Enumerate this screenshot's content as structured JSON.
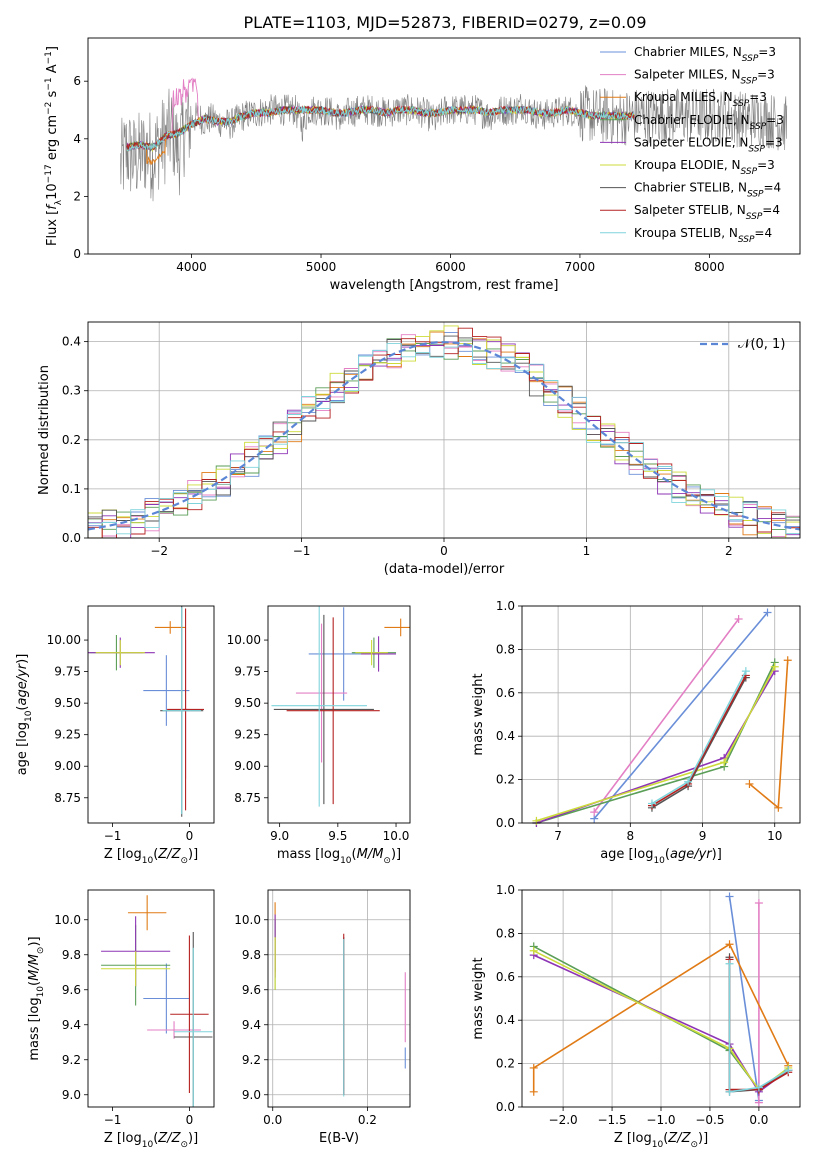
{
  "figure": {
    "title": "PLATE=1103, MJD=52873, FIBERID=0279, z=0.09"
  },
  "legend_entries": [
    {
      "base": "Chabrier MILES, N",
      "sub": "SSP",
      "tail": "=3",
      "color": "#6a8fd8"
    },
    {
      "base": "Salpeter MILES, N",
      "sub": "SSP",
      "tail": "=3",
      "color": "#e37fc4"
    },
    {
      "base": "Kroupa MILES, N",
      "sub": "SSP",
      "tail": "=3",
      "color": "#e07b16"
    },
    {
      "base": "Chabrier ELODIE, N",
      "sub": "SSP",
      "tail": "=3",
      "color": "#5a9e57"
    },
    {
      "base": "Salpeter ELODIE, N",
      "sub": "SSP",
      "tail": "=3",
      "color": "#8e35b5"
    },
    {
      "base": "Kroupa ELODIE, N",
      "sub": "SSP",
      "tail": "=3",
      "color": "#cddb3a"
    },
    {
      "base": "Chabrier STELIB, N",
      "sub": "SSP",
      "tail": "=4",
      "color": "#555555"
    },
    {
      "base": "Salpeter STELIB, N",
      "sub": "SSP",
      "tail": "=4",
      "color": "#b52222"
    },
    {
      "base": "Kroupa STELIB, N",
      "sub": "SSP",
      "tail": "=4",
      "color": "#7fd4dc"
    }
  ],
  "chart_data": [
    {
      "id": "spectrum",
      "type": "line",
      "xlabel": "wavelength [Angstrom, rest frame]",
      "ylabel": "Flux [f_λ 10^-17 erg cm^-2 s^-1 A^-1]",
      "xlim": [
        3200,
        8700
      ],
      "ylim": [
        0,
        7.5
      ],
      "xticks": [
        4000,
        5000,
        6000,
        7000,
        8000
      ],
      "yticks": [
        0,
        2,
        4,
        6
      ],
      "grid": false,
      "legend_position": "right",
      "data_color": "#808080",
      "data_points": [
        [
          3450,
          3.0
        ],
        [
          3500,
          3.6
        ],
        [
          3550,
          3.3
        ],
        [
          3600,
          3.4
        ],
        [
          3650,
          3.6
        ],
        [
          3700,
          3.4
        ],
        [
          3750,
          3.8
        ],
        [
          3800,
          4.0
        ],
        [
          3850,
          4.3
        ],
        [
          3900,
          3.5
        ],
        [
          3950,
          4.4
        ],
        [
          4000,
          4.6
        ],
        [
          4050,
          4.8
        ],
        [
          4100,
          4.6
        ],
        [
          4150,
          4.7
        ],
        [
          4200,
          4.6
        ],
        [
          4300,
          4.5
        ],
        [
          4400,
          4.8
        ],
        [
          4500,
          4.9
        ],
        [
          4600,
          5.0
        ],
        [
          4700,
          5.0
        ],
        [
          4800,
          5.0
        ],
        [
          4861,
          4.4
        ],
        [
          4900,
          5.0
        ],
        [
          5000,
          5.0
        ],
        [
          5100,
          4.9
        ],
        [
          5175,
          4.6
        ],
        [
          5200,
          4.9
        ],
        [
          5300,
          5.0
        ],
        [
          5400,
          5.0
        ],
        [
          5500,
          4.9
        ],
        [
          5600,
          5.0
        ],
        [
          5700,
          5.0
        ],
        [
          5800,
          4.9
        ],
        [
          5890,
          4.6
        ],
        [
          5950,
          5.0
        ],
        [
          6000,
          5.0
        ],
        [
          6100,
          5.0
        ],
        [
          6200,
          5.0
        ],
        [
          6300,
          4.8
        ],
        [
          6400,
          5.0
        ],
        [
          6500,
          5.0
        ],
        [
          6563,
          5.2
        ],
        [
          6600,
          5.0
        ],
        [
          6700,
          4.8
        ],
        [
          6800,
          4.9
        ],
        [
          6900,
          5.0
        ],
        [
          7000,
          4.9
        ],
        [
          7100,
          4.8
        ],
        [
          7200,
          4.8
        ],
        [
          7300,
          4.7
        ],
        [
          7400,
          4.8
        ],
        [
          7500,
          4.8
        ],
        [
          7600,
          4.8
        ],
        [
          7700,
          4.8
        ],
        [
          7800,
          4.8
        ],
        [
          7900,
          4.8
        ],
        [
          8000,
          4.8
        ],
        [
          8100,
          4.8
        ],
        [
          8200,
          4.7
        ],
        [
          8300,
          4.7
        ],
        [
          8400,
          4.7
        ],
        [
          8500,
          4.6
        ],
        [
          8600,
          4.5
        ]
      ],
      "model_points": [
        [
          3500,
          3.7
        ],
        [
          3600,
          3.8
        ],
        [
          3700,
          3.7
        ],
        [
          3800,
          4.1
        ],
        [
          3900,
          4.2
        ],
        [
          4000,
          4.5
        ],
        [
          4100,
          4.7
        ],
        [
          4200,
          4.6
        ],
        [
          4300,
          4.6
        ],
        [
          4400,
          4.8
        ],
        [
          4500,
          4.9
        ],
        [
          4600,
          4.9
        ],
        [
          4700,
          5.0
        ],
        [
          4800,
          5.0
        ],
        [
          4900,
          5.0
        ],
        [
          5000,
          5.0
        ],
        [
          5100,
          4.9
        ],
        [
          5200,
          4.9
        ],
        [
          5300,
          5.0
        ],
        [
          5400,
          5.0
        ],
        [
          5500,
          4.9
        ],
        [
          5600,
          5.0
        ],
        [
          5700,
          5.0
        ],
        [
          5800,
          4.9
        ],
        [
          5900,
          4.9
        ],
        [
          6000,
          5.0
        ],
        [
          6100,
          5.0
        ],
        [
          6200,
          5.0
        ],
        [
          6300,
          4.9
        ],
        [
          6400,
          5.0
        ],
        [
          6500,
          5.0
        ],
        [
          6600,
          5.0
        ],
        [
          6700,
          4.9
        ],
        [
          6800,
          4.9
        ],
        [
          6900,
          5.0
        ],
        [
          7000,
          4.9
        ],
        [
          7100,
          4.8
        ],
        [
          7200,
          4.8
        ],
        [
          7300,
          4.8
        ],
        [
          7400,
          4.8
        ],
        [
          7500,
          4.8
        ],
        [
          7600,
          4.8
        ],
        [
          7700,
          4.8
        ],
        [
          7800,
          4.8
        ],
        [
          7900,
          4.8
        ],
        [
          8000,
          4.8
        ],
        [
          8100,
          4.8
        ],
        [
          8200,
          4.7
        ],
        [
          8300,
          4.7
        ],
        [
          8400,
          4.7
        ],
        [
          8500,
          4.6
        ],
        [
          8600,
          4.5
        ]
      ]
    },
    {
      "id": "residuals",
      "type": "line",
      "xlabel": "(data-model)/error",
      "ylabel": "Normed distribution",
      "xlim": [
        -2.5,
        2.5
      ],
      "ylim": [
        0,
        0.44
      ],
      "xticks": [
        -2,
        -1,
        0,
        1,
        2
      ],
      "yticks": [
        0.0,
        0.1,
        0.2,
        0.3,
        0.4
      ],
      "grid": true,
      "legend_position": "top-right",
      "gaussian_label": "𝒩(0, 1)",
      "bin_width": 0.1,
      "bin_start": -2.5
    },
    {
      "id": "age_vs_Z",
      "type": "scatter",
      "xlabel": "Z [log10(Z/Z⊙)]",
      "ylabel": "age [log10(age/yr)]",
      "xlim": [
        -1.32,
        0.32
      ],
      "ylim": [
        8.55,
        10.27
      ],
      "xticks": [
        -1,
        0
      ],
      "yticks": [
        8.75,
        9.0,
        9.25,
        9.5,
        9.75,
        10.0
      ],
      "grid": false,
      "points": [
        {
          "x": -0.3,
          "xerr": 0.3,
          "y": 9.6,
          "yerr": 0.28,
          "color": "#6a8fd8"
        },
        {
          "x": -0.05,
          "xerr": 0.05,
          "y": 9.45,
          "yerr": 0.55,
          "color": "#e37fc4"
        },
        {
          "x": -0.25,
          "xerr": 0.2,
          "y": 10.1,
          "yerr": 0.05,
          "color": "#e07b16"
        },
        {
          "x": -0.95,
          "xerr": 0.35,
          "y": 9.9,
          "yerr": 0.14,
          "color": "#5a9e57"
        },
        {
          "x": -0.9,
          "xerr": 0.45,
          "y": 9.9,
          "yerr": 0.12,
          "color": "#8e35b5"
        },
        {
          "x": -0.9,
          "xerr": 0.32,
          "y": 9.9,
          "yerr": 0.1,
          "color": "#cddb3a"
        },
        {
          "x": -0.1,
          "xerr": 0.28,
          "y": 9.44,
          "yerr": 0.84,
          "color": "#555555"
        },
        {
          "x": -0.05,
          "xerr": 0.24,
          "y": 9.45,
          "yerr": 0.8,
          "color": "#b52222"
        },
        {
          "x": -0.1,
          "xerr": 0.25,
          "y": 9.44,
          "yerr": 0.82,
          "color": "#7fd4dc"
        }
      ]
    },
    {
      "id": "age_vs_mass",
      "type": "scatter",
      "xlabel": "mass [log10(M/M⊙)]",
      "ylabel": "",
      "xlim": [
        8.9,
        10.12
      ],
      "ylim": [
        8.55,
        10.27
      ],
      "xticks": [
        9.0,
        9.5,
        10.0
      ],
      "yticks": [
        8.75,
        9.0,
        9.25,
        9.5,
        9.75,
        10.0
      ],
      "grid": false,
      "points": [
        {
          "x": 9.55,
          "xerr": 0.3,
          "y": 9.89,
          "yerr": 0.37,
          "color": "#6a8fd8"
        },
        {
          "x": 9.36,
          "xerr": 0.22,
          "y": 9.58,
          "yerr": 0.55,
          "color": "#e37fc4"
        },
        {
          "x": 10.04,
          "xerr": 0.14,
          "y": 10.1,
          "yerr": 0.07,
          "color": "#e07b16"
        },
        {
          "x": 9.81,
          "xerr": 0.19,
          "y": 9.9,
          "yerr": 0.12,
          "color": "#5a9e57"
        },
        {
          "x": 9.85,
          "xerr": 0.15,
          "y": 9.89,
          "yerr": 0.14,
          "color": "#8e35b5"
        },
        {
          "x": 9.79,
          "xerr": 0.14,
          "y": 9.9,
          "yerr": 0.1,
          "color": "#cddb3a"
        },
        {
          "x": 9.38,
          "xerr": 0.43,
          "y": 9.45,
          "yerr": 0.75,
          "color": "#555555"
        },
        {
          "x": 9.46,
          "xerr": 0.4,
          "y": 9.44,
          "yerr": 0.74,
          "color": "#b52222"
        },
        {
          "x": 9.34,
          "xerr": 0.41,
          "y": 9.48,
          "yerr": 0.8,
          "color": "#7fd4dc"
        }
      ]
    },
    {
      "id": "weight_vs_age",
      "type": "line",
      "xlabel": "age [log10(age/yr)]",
      "ylabel": "mass weight",
      "xlim": [
        6.5,
        10.35
      ],
      "ylim": [
        0,
        1
      ],
      "xticks": [
        7,
        8,
        9,
        10
      ],
      "yticks": [
        0.0,
        0.2,
        0.4,
        0.6,
        0.8,
        1.0
      ],
      "grid": true,
      "series": [
        {
          "color": "#6a8fd8",
          "x": [
            7.5,
            9.9
          ],
          "y": [
            0.02,
            0.97
          ]
        },
        {
          "color": "#e37fc4",
          "x": [
            7.5,
            9.5
          ],
          "y": [
            0.05,
            0.94
          ]
        },
        {
          "color": "#e07b16",
          "x": [
            9.65,
            10.05,
            10.18
          ],
          "y": [
            0.18,
            0.07,
            0.75
          ]
        },
        {
          "color": "#5a9e57",
          "x": [
            6.7,
            9.3,
            10.0
          ],
          "y": [
            0.0,
            0.26,
            0.74
          ]
        },
        {
          "color": "#8e35b5",
          "x": [
            6.7,
            9.3,
            10.0
          ],
          "y": [
            0.0,
            0.3,
            0.7
          ]
        },
        {
          "color": "#cddb3a",
          "x": [
            6.7,
            9.3,
            10.0
          ],
          "y": [
            0.01,
            0.28,
            0.72
          ]
        },
        {
          "color": "#555555",
          "x": [
            8.3,
            8.8,
            9.6
          ],
          "y": [
            0.07,
            0.17,
            0.67
          ]
        },
        {
          "color": "#b52222",
          "x": [
            8.3,
            8.8,
            9.6
          ],
          "y": [
            0.08,
            0.18,
            0.68
          ]
        },
        {
          "color": "#7fd4dc",
          "x": [
            8.3,
            8.8,
            9.6
          ],
          "y": [
            0.09,
            0.19,
            0.7
          ]
        }
      ]
    },
    {
      "id": "mass_vs_Z",
      "type": "scatter",
      "xlabel": "Z [log10(Z/Z⊙)]",
      "ylabel": "mass [log10(M/M⊙)]",
      "xlim": [
        -1.32,
        0.32
      ],
      "ylim": [
        8.93,
        10.17
      ],
      "xticks": [
        -1,
        0
      ],
      "yticks": [
        9.0,
        9.2,
        9.4,
        9.6,
        9.8,
        10.0
      ],
      "grid": false,
      "points": [
        {
          "x": -0.3,
          "xerr": 0.3,
          "y": 9.55,
          "yerr": 0.2,
          "color": "#6a8fd8"
        },
        {
          "x": -0.2,
          "xerr": 0.35,
          "y": 9.37,
          "yerr": 0.05,
          "color": "#e37fc4"
        },
        {
          "x": -0.55,
          "xerr": 0.25,
          "y": 10.04,
          "yerr": 0.1,
          "color": "#e07b16"
        },
        {
          "x": -0.7,
          "xerr": 0.45,
          "y": 9.74,
          "yerr": 0.23,
          "color": "#5a9e57"
        },
        {
          "x": -0.7,
          "xerr": 0.45,
          "y": 9.82,
          "yerr": 0.2,
          "color": "#8e35b5"
        },
        {
          "x": -0.7,
          "xerr": 0.45,
          "y": 9.72,
          "yerr": 0.1,
          "color": "#cddb3a"
        },
        {
          "x": 0.05,
          "xerr": 0.25,
          "y": 9.33,
          "yerr": 0.6,
          "color": "#555555"
        },
        {
          "x": 0.0,
          "xerr": 0.25,
          "y": 9.46,
          "yerr": 0.45,
          "color": "#b52222"
        },
        {
          "x": 0.05,
          "xerr": 0.25,
          "y": 9.36,
          "yerr": 0.48,
          "color": "#7fd4dc"
        }
      ]
    },
    {
      "id": "mass_vs_EBV",
      "type": "scatter",
      "xlabel": "E(B-V)",
      "ylabel": "",
      "xlim": [
        -0.01,
        0.29
      ],
      "ylim": [
        8.93,
        10.17
      ],
      "xticks": [
        0.0,
        0.2
      ],
      "yticks": [
        9.0,
        9.2,
        9.4,
        9.6,
        9.8,
        10.0
      ],
      "grid": true,
      "points": [
        {
          "x": 0.28,
          "xerr": 0,
          "y": 9.21,
          "yerr": 0.06,
          "color": "#6a8fd8"
        },
        {
          "x": 0.28,
          "xerr": 0,
          "y": 9.5,
          "yerr": 0.2,
          "color": "#e37fc4"
        },
        {
          "x": 0.005,
          "xerr": 0,
          "y": 9.9,
          "yerr": 0.2,
          "color": "#e07b16"
        },
        {
          "x": 0.005,
          "xerr": 0,
          "y": 9.8,
          "yerr": 0.2,
          "color": "#5a9e57"
        },
        {
          "x": 0.005,
          "xerr": 0,
          "y": 9.85,
          "yerr": 0.18,
          "color": "#8e35b5"
        },
        {
          "x": 0.005,
          "xerr": 0,
          "y": 9.75,
          "yerr": 0.15,
          "color": "#cddb3a"
        },
        {
          "x": 0.15,
          "xerr": 0,
          "y": 9.45,
          "yerr": 0.45,
          "color": "#555555"
        },
        {
          "x": 0.15,
          "xerr": 0,
          "y": 9.46,
          "yerr": 0.46,
          "color": "#b52222"
        },
        {
          "x": 0.15,
          "xerr": 0,
          "y": 9.44,
          "yerr": 0.45,
          "color": "#7fd4dc"
        }
      ]
    },
    {
      "id": "weight_vs_Z",
      "type": "line",
      "xlabel": "Z [log10(Z/Z⊙)]",
      "ylabel": "mass weight",
      "xlim": [
        -2.42,
        0.42
      ],
      "ylim": [
        0,
        1
      ],
      "xticks": [
        -2.0,
        -1.5,
        -1.0,
        -0.5,
        0.0
      ],
      "yticks": [
        0.0,
        0.2,
        0.4,
        0.6,
        0.8,
        1.0
      ],
      "grid": true,
      "series": [
        {
          "color": "#6a8fd8",
          "x": [
            -0.3,
            0.0
          ],
          "y": [
            0.97,
            0.03
          ]
        },
        {
          "color": "#e37fc4",
          "x": [
            0.0,
            0.0
          ],
          "y": [
            0.94,
            0.02
          ]
        },
        {
          "color": "#e07b16",
          "x": [
            -2.3,
            -2.3,
            -0.3,
            0.3
          ],
          "y": [
            0.07,
            0.18,
            0.75,
            0.19
          ]
        },
        {
          "color": "#5a9e57",
          "x": [
            -2.3,
            -0.3,
            0.0,
            0.3
          ],
          "y": [
            0.74,
            0.26,
            0.08,
            0.17
          ]
        },
        {
          "color": "#8e35b5",
          "x": [
            -2.3,
            -0.3,
            0.0,
            0.3
          ],
          "y": [
            0.7,
            0.29,
            0.07,
            0.17
          ]
        },
        {
          "color": "#cddb3a",
          "x": [
            -2.3,
            -0.3,
            0.0,
            0.3
          ],
          "y": [
            0.72,
            0.27,
            0.08,
            0.18
          ]
        },
        {
          "color": "#555555",
          "x": [
            -0.3,
            -0.3,
            0.0,
            0.3
          ],
          "y": [
            0.69,
            0.07,
            0.08,
            0.17
          ]
        },
        {
          "color": "#b52222",
          "x": [
            -0.3,
            -0.3,
            0.0,
            0.3
          ],
          "y": [
            0.68,
            0.08,
            0.08,
            0.16
          ]
        },
        {
          "color": "#7fd4dc",
          "x": [
            -0.3,
            -0.3,
            0.0,
            0.3
          ],
          "y": [
            0.66,
            0.07,
            0.09,
            0.17
          ]
        }
      ]
    }
  ]
}
